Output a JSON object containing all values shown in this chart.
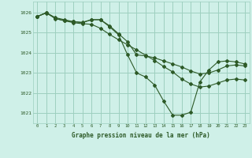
{
  "title": "Graphe pression niveau de la mer (hPa)",
  "background_color": "#cff0e8",
  "grid_color": "#9ecfbf",
  "line_color": "#2d5a27",
  "xlim": [
    -0.5,
    23.5
  ],
  "ylim": [
    1020.5,
    1026.55
  ],
  "yticks": [
    1021,
    1022,
    1023,
    1024,
    1025,
    1026
  ],
  "xticks": [
    0,
    1,
    2,
    3,
    4,
    5,
    6,
    7,
    8,
    9,
    10,
    11,
    12,
    13,
    14,
    15,
    16,
    17,
    18,
    19,
    20,
    21,
    22,
    23
  ],
  "series": [
    [
      1025.8,
      1026.0,
      1025.75,
      1025.65,
      1025.55,
      1025.52,
      1025.65,
      1025.65,
      1025.35,
      1024.95,
      1024.55,
      1023.9,
      1023.85,
      1023.75,
      1023.6,
      1023.45,
      1023.3,
      1023.1,
      1022.95,
      1023.0,
      1023.15,
      1023.35,
      1023.4,
      1023.35
    ],
    [
      1025.82,
      1025.98,
      1025.72,
      1025.6,
      1025.5,
      1025.45,
      1025.42,
      1025.22,
      1024.92,
      1024.65,
      1024.4,
      1024.15,
      1023.88,
      1023.62,
      1023.32,
      1023.05,
      1022.7,
      1022.45,
      1022.3,
      1022.35,
      1022.5,
      1022.65,
      1022.7,
      1022.65
    ],
    [
      1025.8,
      1026.0,
      1025.7,
      1025.6,
      1025.55,
      1025.5,
      1025.65,
      1025.65,
      1025.3,
      1024.9,
      1023.9,
      1023.0,
      1022.8,
      1022.4,
      1021.6,
      1020.9,
      1020.9,
      1021.05,
      1022.55,
      1023.15,
      1023.55,
      1023.6,
      1023.55,
      1023.45
    ]
  ]
}
